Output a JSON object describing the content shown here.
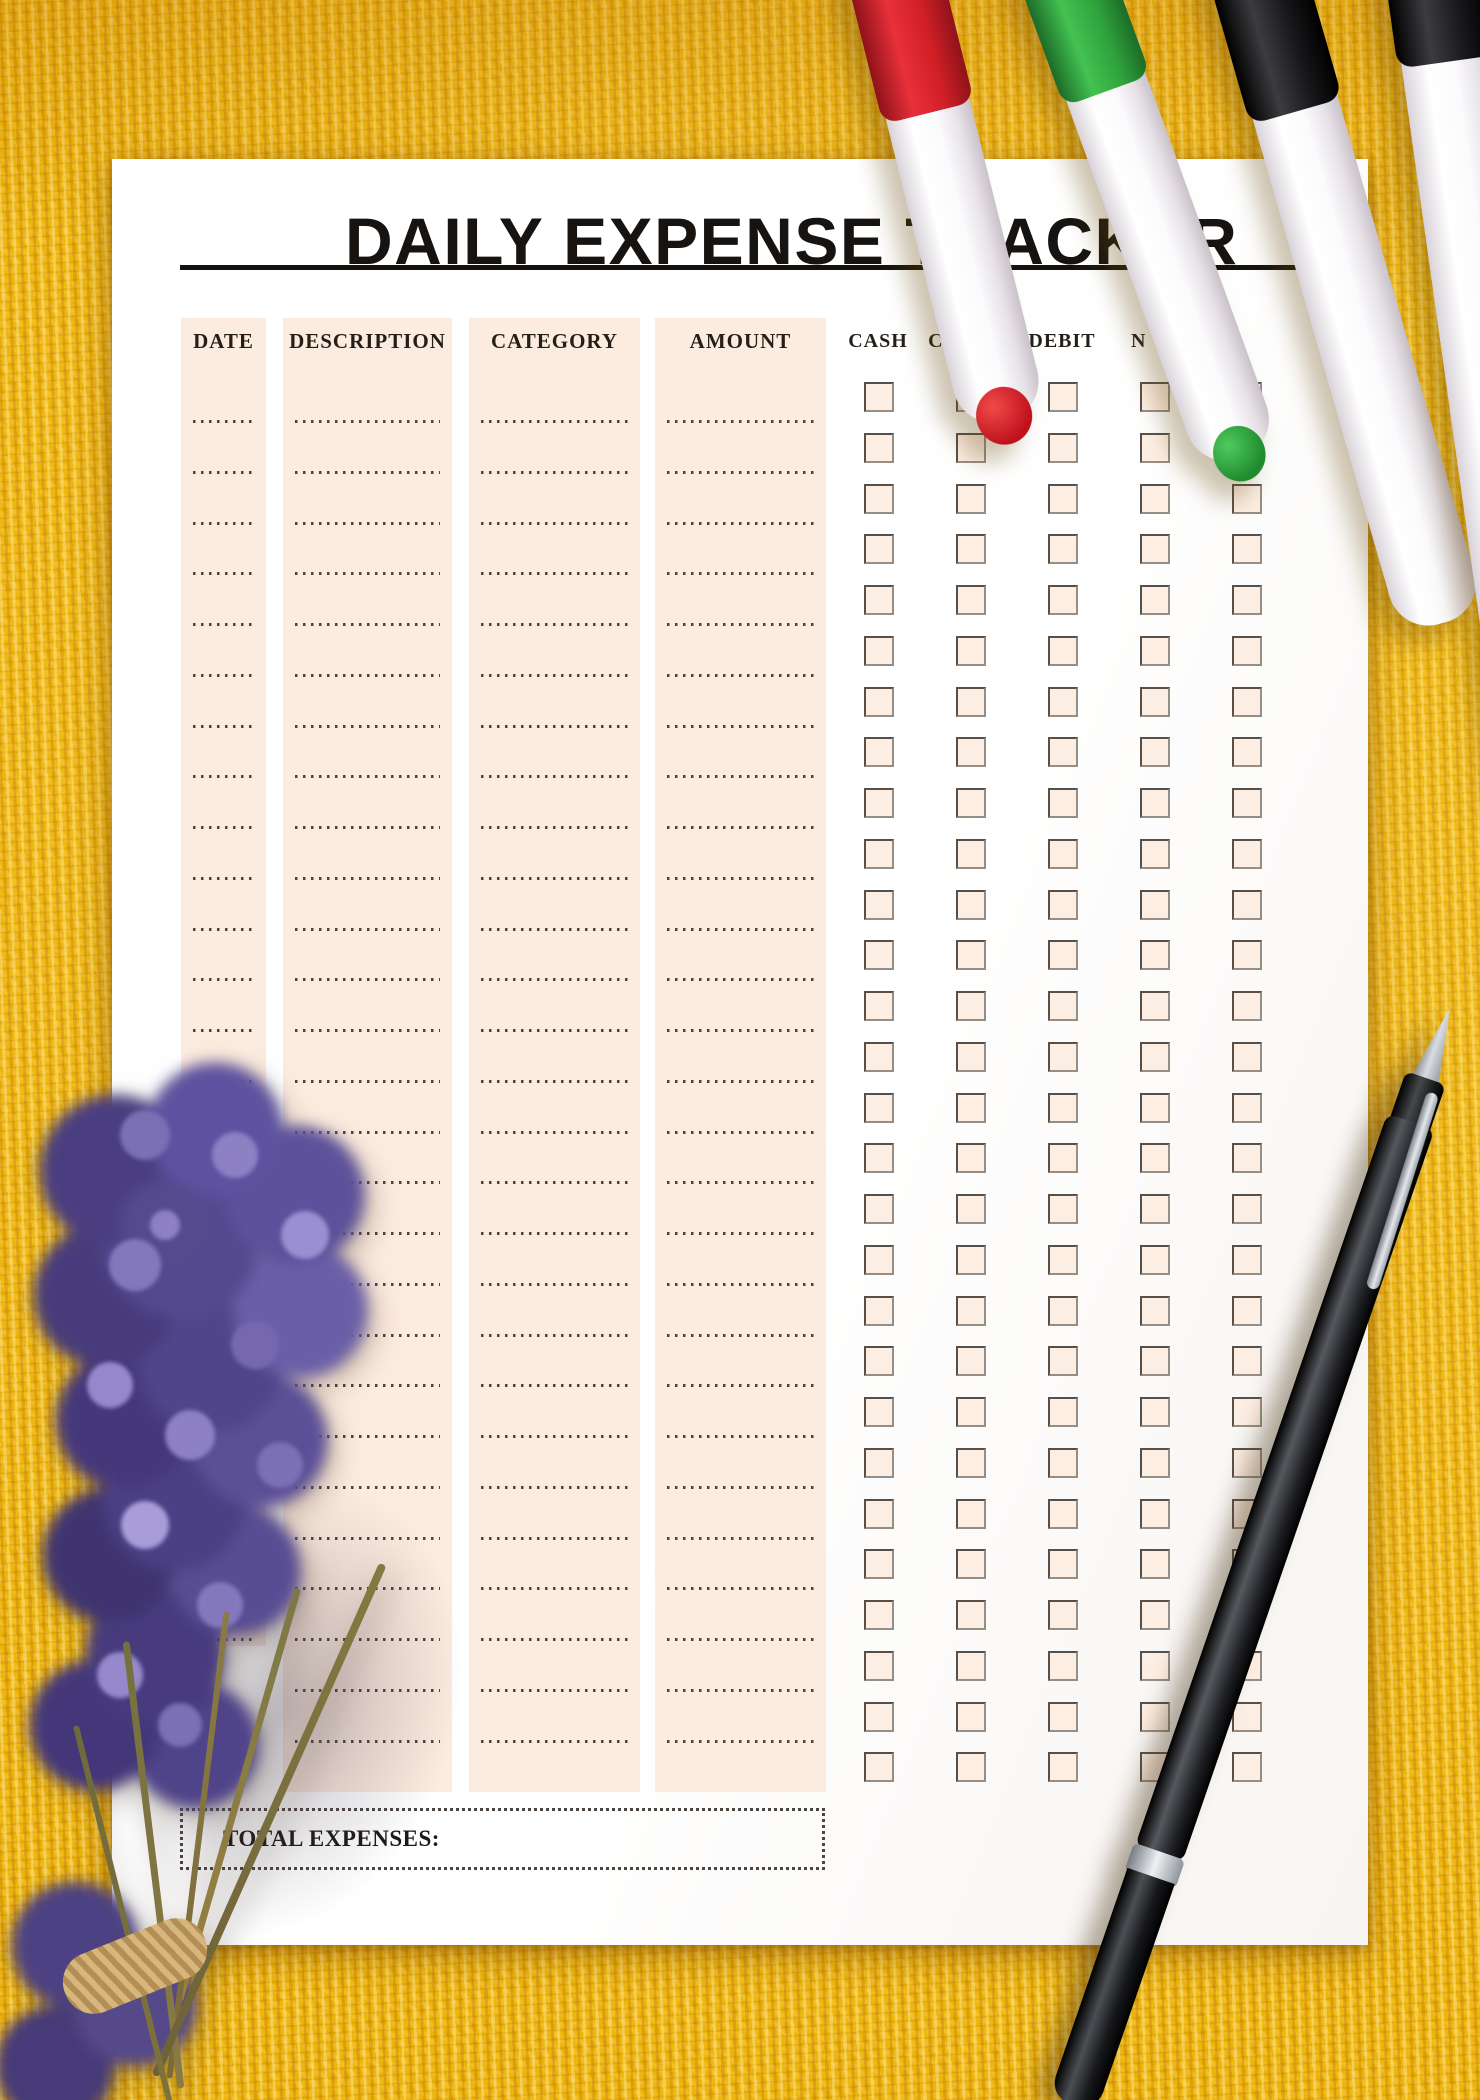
{
  "page": {
    "title": "DAILY EXPENSE TRACKER",
    "total_label": "TOTAL EXPENSES:"
  },
  "table": {
    "text_columns": [
      {
        "label": "DATE",
        "lines": 25
      },
      {
        "label": "DESCRIPTION",
        "lines": 27
      },
      {
        "label": "CATEGORY",
        "lines": 27
      },
      {
        "label": "AMOUNT",
        "lines": 27
      }
    ],
    "checkbox_columns": [
      {
        "label": "CASH"
      },
      {
        "label": "CREDIT"
      },
      {
        "label": "DEBIT"
      },
      {
        "label": "N"
      },
      {
        "label": ""
      }
    ],
    "checkbox_rows": 28,
    "all_checkboxes_unchecked": true
  },
  "colors": {
    "paper": "#ffffff",
    "column_background": "#fcebdf",
    "checkbox_background": "#fdeee3",
    "ink": "#18140f",
    "dotted_line": "#4c443f",
    "fabric_yellow": "#efb50c",
    "marker_red": "#d01f26",
    "marker_green": "#2fa23c",
    "marker_black": "#17171a",
    "flower_purple": "#5b4f97"
  }
}
